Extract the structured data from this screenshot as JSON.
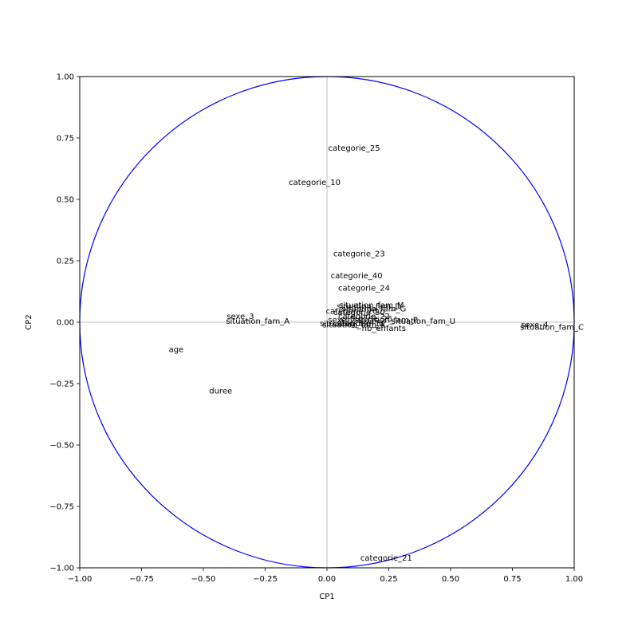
{
  "chart_data": {
    "type": "scatter",
    "title": "",
    "xlabel": "CP1",
    "ylabel": "CP2",
    "xlim": [
      -1.0,
      1.0
    ],
    "ylim": [
      -1.0,
      1.0
    ],
    "xticks": [
      -1.0,
      -0.75,
      -0.5,
      -0.25,
      0.0,
      0.25,
      0.5,
      0.75,
      1.0
    ],
    "yticks": [
      -1.0,
      -0.75,
      -0.5,
      -0.25,
      0.0,
      0.25,
      0.5,
      0.75,
      1.0
    ],
    "xtick_labels": [
      "−1.00",
      "−0.75",
      "−0.50",
      "−0.25",
      "0.00",
      "0.25",
      "0.50",
      "0.75",
      "1.00"
    ],
    "ytick_labels": [
      "−1.00",
      "−0.75",
      "−0.50",
      "−0.25",
      "0.00",
      "0.25",
      "0.50",
      "0.75",
      "1.00"
    ],
    "unit_circle": true,
    "colors": {
      "circle": "#0000ff",
      "crosshair": "#bfbfbf",
      "axes": "#000000"
    },
    "points": [
      {
        "label": "categorie_25",
        "x": 0.11,
        "y": 0.71
      },
      {
        "label": "categorie_10",
        "x": -0.05,
        "y": 0.57
      },
      {
        "label": "categorie_23",
        "x": 0.13,
        "y": 0.28
      },
      {
        "label": "categorie_40",
        "x": 0.12,
        "y": 0.19
      },
      {
        "label": "categorie_24",
        "x": 0.15,
        "y": 0.14
      },
      {
        "label": "situation_fam_M",
        "x": 0.18,
        "y": 0.07
      },
      {
        "label": "situation_fam_D",
        "x": 0.17,
        "y": 0.065
      },
      {
        "label": "situation_fam_G",
        "x": 0.19,
        "y": 0.055
      },
      {
        "label": "categorie_20",
        "x": 0.1,
        "y": 0.045
      },
      {
        "label": "categorie_30",
        "x": 0.13,
        "y": 0.04
      },
      {
        "label": "categorie_22",
        "x": 0.15,
        "y": 0.025
      },
      {
        "label": "categorie_26",
        "x": 0.16,
        "y": 0.015
      },
      {
        "label": "situation_fam_P",
        "x": 0.24,
        "y": 0.01
      },
      {
        "label": "situation_fam_U",
        "x": 0.39,
        "y": 0.005
      },
      {
        "label": "sexe_2",
        "x": 0.06,
        "y": 0.01
      },
      {
        "label": "situation_fam_V",
        "x": 0.1,
        "y": -0.005
      },
      {
        "label": "situation_fam_X",
        "x": 0.11,
        "y": -0.01
      },
      {
        "label": "categorie_11",
        "x": 0.13,
        "y": -0.005
      },
      {
        "label": "nb_enfants",
        "x": 0.23,
        "y": -0.025
      },
      {
        "label": "sexe_3",
        "x": -0.35,
        "y": 0.025
      },
      {
        "label": "situation_fam_A",
        "x": -0.28,
        "y": 0.005
      },
      {
        "label": "sexe_4",
        "x": 0.84,
        "y": -0.01
      },
      {
        "label": "situation_fam_C",
        "x": 0.91,
        "y": -0.02
      },
      {
        "label": "age",
        "x": -0.61,
        "y": -0.11
      },
      {
        "label": "duree",
        "x": -0.43,
        "y": -0.28
      },
      {
        "label": "categorie_21",
        "x": 0.24,
        "y": -0.96
      }
    ]
  }
}
